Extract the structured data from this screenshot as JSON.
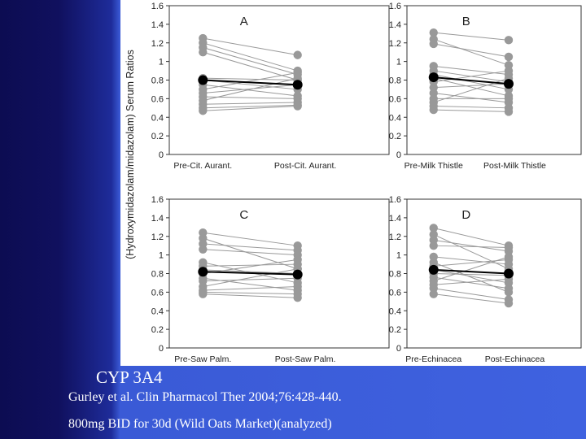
{
  "chart_data": {
    "type": "line",
    "ylabel": "(Hydroxymidazolam/midazolam) Serum Ratios",
    "ylim": [
      0,
      1.6
    ],
    "yticks": [
      "0",
      "0.2",
      "0.4",
      "0.6",
      "0.8",
      "1",
      "1.2",
      "1.4",
      "1.6"
    ],
    "colors": {
      "individual": "#999999",
      "mean": "#000000"
    },
    "panels": [
      {
        "letter": "A",
        "categories": [
          "Pre-Cit. Aurant.",
          "Post-Cit. Aurant."
        ],
        "individual": [
          [
            1.25,
            1.07
          ],
          [
            1.2,
            0.9
          ],
          [
            1.15,
            0.86
          ],
          [
            1.1,
            0.8
          ],
          [
            0.82,
            0.8
          ],
          [
            0.8,
            0.7
          ],
          [
            0.75,
            0.63
          ],
          [
            0.7,
            0.88
          ],
          [
            0.66,
            0.75
          ],
          [
            0.62,
            0.6
          ],
          [
            0.58,
            0.82
          ],
          [
            0.54,
            0.56
          ],
          [
            0.5,
            0.53
          ],
          [
            0.47,
            0.52
          ]
        ],
        "mean": [
          0.8,
          0.75
        ]
      },
      {
        "letter": "B",
        "categories": [
          "Pre-Milk Thistle",
          "Post-Milk Thistle"
        ],
        "individual": [
          [
            1.31,
            1.23
          ],
          [
            1.24,
            0.96
          ],
          [
            1.19,
            1.05
          ],
          [
            0.95,
            0.86
          ],
          [
            0.9,
            0.78
          ],
          [
            0.86,
            0.7
          ],
          [
            0.82,
            0.63
          ],
          [
            0.78,
            0.9
          ],
          [
            0.72,
            0.76
          ],
          [
            0.66,
            0.56
          ],
          [
            0.6,
            0.6
          ],
          [
            0.56,
            0.82
          ],
          [
            0.52,
            0.5
          ],
          [
            0.48,
            0.46
          ]
        ],
        "mean": [
          0.83,
          0.76
        ]
      },
      {
        "letter": "C",
        "categories": [
          "Pre-Saw Palm.",
          "Post-Saw Palm."
        ],
        "individual": [
          [
            1.24,
            1.1
          ],
          [
            1.18,
            0.85
          ],
          [
            1.12,
            1.05
          ],
          [
            1.06,
            1.0
          ],
          [
            0.92,
            0.7
          ],
          [
            0.88,
            0.9
          ],
          [
            0.84,
            0.8
          ],
          [
            0.8,
            0.95
          ],
          [
            0.75,
            0.62
          ],
          [
            0.72,
            0.75
          ],
          [
            0.66,
            0.85
          ],
          [
            0.62,
            0.66
          ],
          [
            0.6,
            0.58
          ],
          [
            0.58,
            0.54
          ]
        ],
        "mean": [
          0.82,
          0.79
        ]
      },
      {
        "letter": "D",
        "categories": [
          "Pre-Echinacea",
          "Post-Echinacea"
        ],
        "individual": [
          [
            1.29,
            1.1
          ],
          [
            1.22,
            0.85
          ],
          [
            1.16,
            1.04
          ],
          [
            1.1,
            1.08
          ],
          [
            0.98,
            0.9
          ],
          [
            0.92,
            0.6
          ],
          [
            0.88,
            0.95
          ],
          [
            0.84,
            0.7
          ],
          [
            0.8,
            0.78
          ],
          [
            0.76,
            0.64
          ],
          [
            0.72,
            0.98
          ],
          [
            0.68,
            0.74
          ],
          [
            0.64,
            0.52
          ],
          [
            0.58,
            0.48
          ]
        ],
        "mean": [
          0.84,
          0.8
        ]
      }
    ]
  },
  "caption": {
    "title": "CYP 3A4",
    "reference": "Gurley et al. Clin Pharmacol Ther 2004;76:428-440.",
    "note": "800mg BID for 30d (Wild Oats Market)(analyzed)"
  }
}
